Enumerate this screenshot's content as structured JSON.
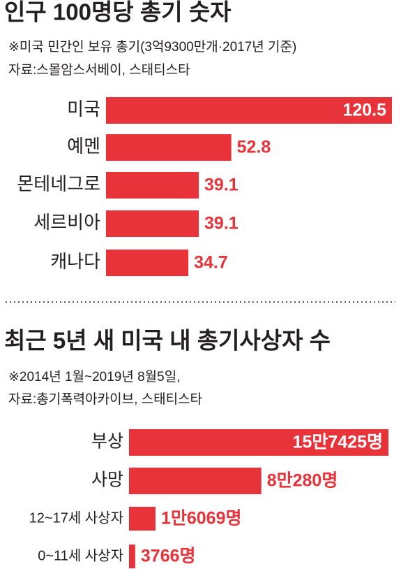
{
  "chart_data": [
    {
      "type": "bar",
      "orientation": "horizontal",
      "title": "인구 100명당 총기 숫자",
      "subtitle": "※미국 민간인 보유 총기(3억9300만개·2017년 기준)",
      "source": "자료:스몰암스서베이, 스태티스타",
      "categories": [
        "미국",
        "예멘",
        "몬테네그로",
        "세르비아",
        "캐나다"
      ],
      "values": [
        120.5,
        52.8,
        39.1,
        39.1,
        34.7
      ],
      "color": "#e8333b"
    },
    {
      "type": "bar",
      "orientation": "horizontal",
      "title": "최근 5년 새 미국 내 총기사상자 수",
      "subtitle": "※2014년 1월~2019년 8월5일,",
      "source": "자료:총기폭력아카이브, 스태티스타",
      "categories": [
        "부상",
        "사망",
        "12~17세 사상자",
        "0~11세 사상자"
      ],
      "values": [
        157425,
        80280,
        16069,
        3766
      ],
      "value_labels": [
        "15만7425명",
        "8만280명",
        "1만6069명",
        "3766명"
      ],
      "color": "#e8333b"
    }
  ]
}
